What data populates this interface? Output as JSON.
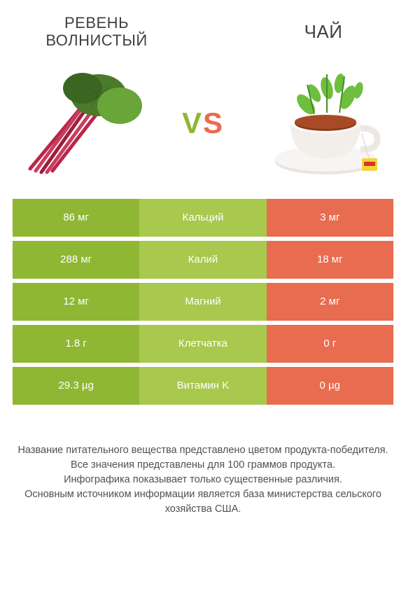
{
  "colors": {
    "green_dark": "#8fb734",
    "green_light": "#a8c84e",
    "orange": "#e86c4f",
    "vs_v": "#8fb734",
    "vs_s": "#e86c4f",
    "text": "#404040"
  },
  "header": {
    "left_title": "Ревень волнистый",
    "right_title": "Чай",
    "left_fontsize": 22,
    "right_fontsize": 26
  },
  "vs": {
    "v": "V",
    "s": "S"
  },
  "rows": [
    {
      "left": "86 мг",
      "mid": "Кальций",
      "right": "3 мг",
      "mid_bg": "green_light"
    },
    {
      "left": "288 мг",
      "mid": "Калий",
      "right": "18 мг",
      "mid_bg": "green_light"
    },
    {
      "left": "12 мг",
      "mid": "Магний",
      "right": "2 мг",
      "mid_bg": "green_light"
    },
    {
      "left": "1.8 г",
      "mid": "Клетчатка",
      "right": "0 г",
      "mid_bg": "green_light"
    },
    {
      "left": "29.3 µg",
      "mid": "Витамин K",
      "right": "0 µg",
      "mid_bg": "green_light"
    }
  ],
  "footer": {
    "line1": "Название питательного вещества представлено цветом продукта-победителя.",
    "line2": "Все значения представлены для 100 граммов продукта.",
    "line3": "Инфографика показывает только существенные различия.",
    "line4": "Основным источником информации является база министерства сельского хозяйства США."
  }
}
